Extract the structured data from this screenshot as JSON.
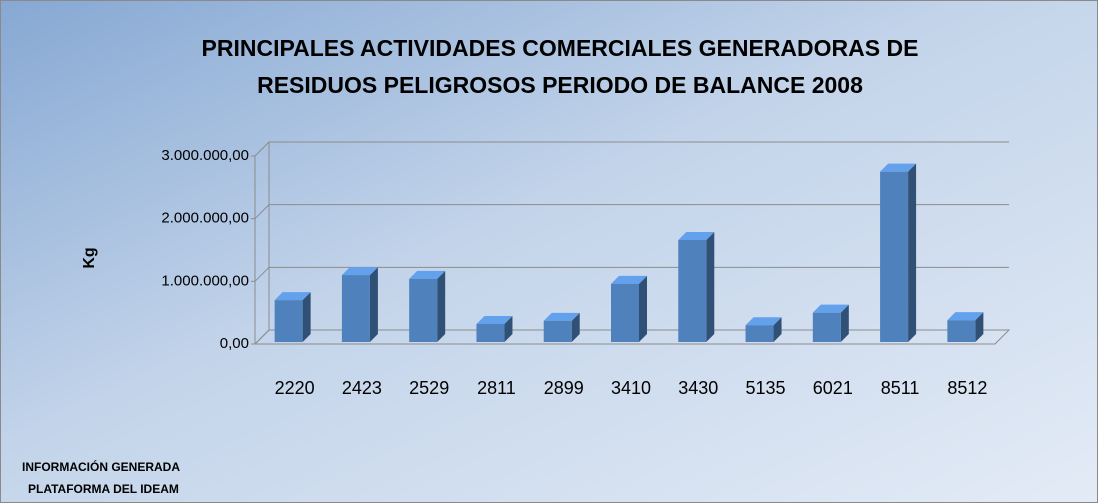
{
  "chart_data": {
    "type": "bar3d",
    "title": [
      "PRINCIPALES ACTIVIDADES COMERCIALES GENERADORAS DE",
      "RESIDUOS PELIGROSOS PERIODO DE BALANCE 2008"
    ],
    "y_label": "Kg",
    "categories": [
      "2220",
      "2423",
      "2529",
      "2811",
      "2899",
      "3410",
      "3430",
      "5135",
      "6021",
      "8511",
      "8512"
    ],
    "values": [
      700000,
      1100000,
      1040000,
      320000,
      370000,
      960000,
      1660000,
      300000,
      500000,
      2750000,
      380000
    ],
    "color": "#4f81bd",
    "ylim": [
      0,
      3000000
    ],
    "yticks": [
      {
        "value": 0,
        "label": "0,00"
      },
      {
        "value": 1000000,
        "label": "1.000.000,00"
      },
      {
        "value": 2000000,
        "label": "2.000.000,00"
      },
      {
        "value": 3000000,
        "label": "3.000.000,00"
      }
    ],
    "grid": true,
    "annotations": [
      "INFORMACIÓN GENERADA",
      "PLATAFORMA DEL IDEAM"
    ]
  }
}
